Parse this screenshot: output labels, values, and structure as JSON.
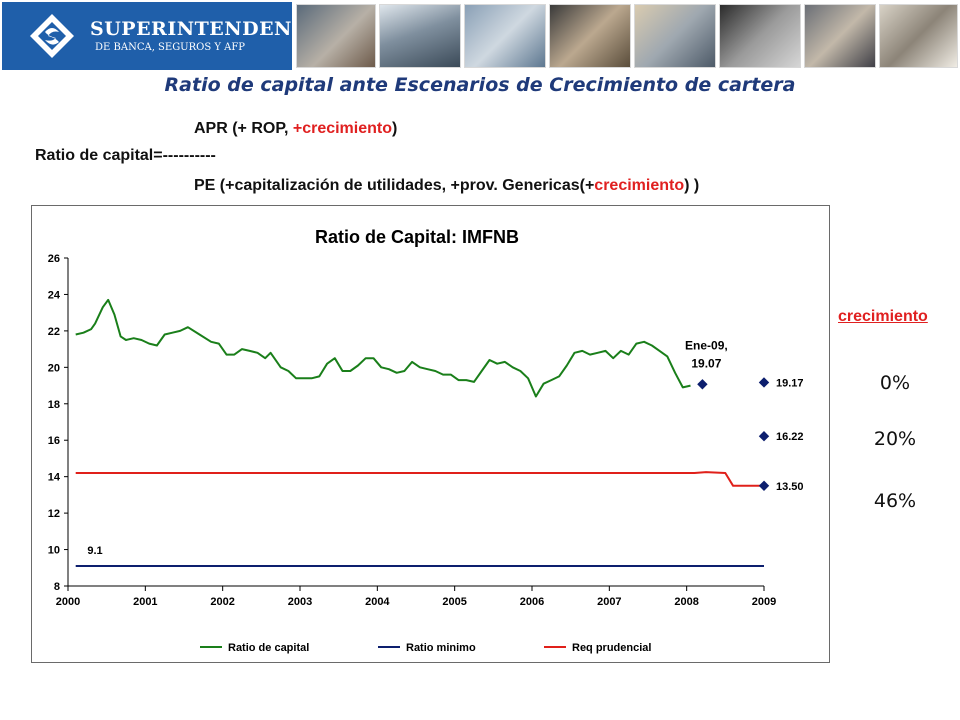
{
  "header": {
    "logo_title": "SUPERINTENDENCIA",
    "logo_subtitle": "DE BANCA, SEGUROS Y AFP"
  },
  "page_title": "Ratio de capital ante Escenarios de Crecimiento de cartera",
  "formula": {
    "numerator_a": "APR  (+ ROP, ",
    "numerator_b": "+crecimiento",
    "numerator_c": ")",
    "lhs": "Ratio de capital=----------",
    "denominator_a": "PE   (+capitalización de utilidades, +prov. Genericas(+",
    "denominator_b": "crecimiento",
    "denominator_c": ") )"
  },
  "growth": {
    "header": "crecimiento",
    "values": [
      "0%",
      "20%",
      "46%"
    ]
  },
  "colors": {
    "capital": "#1a7f1a",
    "minimo": "#0d1f6e",
    "prudencial": "#e0201a",
    "projection_marker": "#0d1f6e"
  },
  "chart_data": {
    "type": "line",
    "title": "Ratio de Capital: IMFNB",
    "xlim": [
      2000,
      2009
    ],
    "ylim": [
      8,
      26
    ],
    "x_ticks": [
      "2000",
      "2001",
      "2002",
      "2003",
      "2004",
      "2005",
      "2006",
      "2007",
      "2008",
      "2009"
    ],
    "y_ticks": [
      "8",
      "10",
      "12",
      "14",
      "16",
      "18",
      "20",
      "22",
      "24",
      "26"
    ],
    "grid": false,
    "legend_position": "bottom",
    "series": [
      {
        "name": "Ratio de capital",
        "x": [
          2000.1,
          2000.2,
          2000.3,
          2000.35,
          2000.45,
          2000.52,
          2000.6,
          2000.68,
          2000.75,
          2000.85,
          2000.95,
          2001.05,
          2001.15,
          2001.25,
          2001.35,
          2001.45,
          2001.55,
          2001.7,
          2001.85,
          2001.95,
          2002.05,
          2002.15,
          2002.25,
          2002.35,
          2002.45,
          2002.55,
          2002.62,
          2002.75,
          2002.85,
          2002.95,
          2003.05,
          2003.15,
          2003.25,
          2003.35,
          2003.45,
          2003.55,
          2003.65,
          2003.75,
          2003.85,
          2003.95,
          2004.05,
          2004.15,
          2004.25,
          2004.35,
          2004.45,
          2004.55,
          2004.65,
          2004.75,
          2004.85,
          2004.95,
          2005.05,
          2005.15,
          2005.25,
          2005.35,
          2005.45,
          2005.55,
          2005.65,
          2005.75,
          2005.85,
          2005.95,
          2006.05,
          2006.15,
          2006.25,
          2006.35,
          2006.45,
          2006.55,
          2006.65,
          2006.75,
          2006.85,
          2006.95,
          2007.05,
          2007.15,
          2007.25,
          2007.35,
          2007.45,
          2007.55,
          2007.65,
          2007.75,
          2007.85,
          2007.95,
          2008.05
        ],
        "values": [
          21.8,
          21.9,
          22.1,
          22.4,
          23.3,
          23.7,
          22.9,
          21.7,
          21.5,
          21.6,
          21.5,
          21.3,
          21.2,
          21.8,
          21.9,
          22.0,
          22.2,
          21.8,
          21.4,
          21.3,
          20.7,
          20.7,
          21.0,
          20.9,
          20.8,
          20.5,
          20.8,
          20.0,
          19.8,
          19.4,
          19.4,
          19.4,
          19.5,
          20.2,
          20.5,
          19.8,
          19.8,
          20.1,
          20.5,
          20.5,
          20.0,
          19.9,
          19.7,
          19.8,
          20.3,
          20.0,
          19.9,
          19.8,
          19.6,
          19.6,
          19.3,
          19.3,
          19.2,
          19.8,
          20.4,
          20.2,
          20.3,
          20.0,
          19.8,
          19.4,
          18.4,
          19.1,
          19.3,
          19.5,
          20.1,
          20.8,
          20.9,
          20.7,
          20.8,
          20.9,
          20.5,
          20.9,
          20.7,
          21.3,
          21.4,
          21.2,
          20.9,
          20.6,
          19.7,
          18.9,
          19.0
        ]
      },
      {
        "name": "Ratio minimo",
        "x": [
          2000.1,
          2009.0
        ],
        "values": [
          9.1,
          9.1
        ]
      },
      {
        "name": "Req prudencial",
        "x": [
          2000.1,
          2008.1,
          2008.25,
          2008.5,
          2008.6,
          2009.0
        ],
        "values": [
          14.2,
          14.2,
          14.25,
          14.2,
          13.5,
          13.5
        ]
      }
    ],
    "point_annotation": {
      "x": 2008.1,
      "y": 19.07,
      "label_line1": "Ene-09,",
      "label_line2": "19.07"
    },
    "projection_points": [
      {
        "x": 2009.0,
        "y": 19.17,
        "label": "19.17"
      },
      {
        "x": 2009.0,
        "y": 16.22,
        "label": "16.22"
      },
      {
        "x": 2009.0,
        "y": 13.5,
        "label": "13.50"
      }
    ],
    "minimo_label": "9.1"
  }
}
